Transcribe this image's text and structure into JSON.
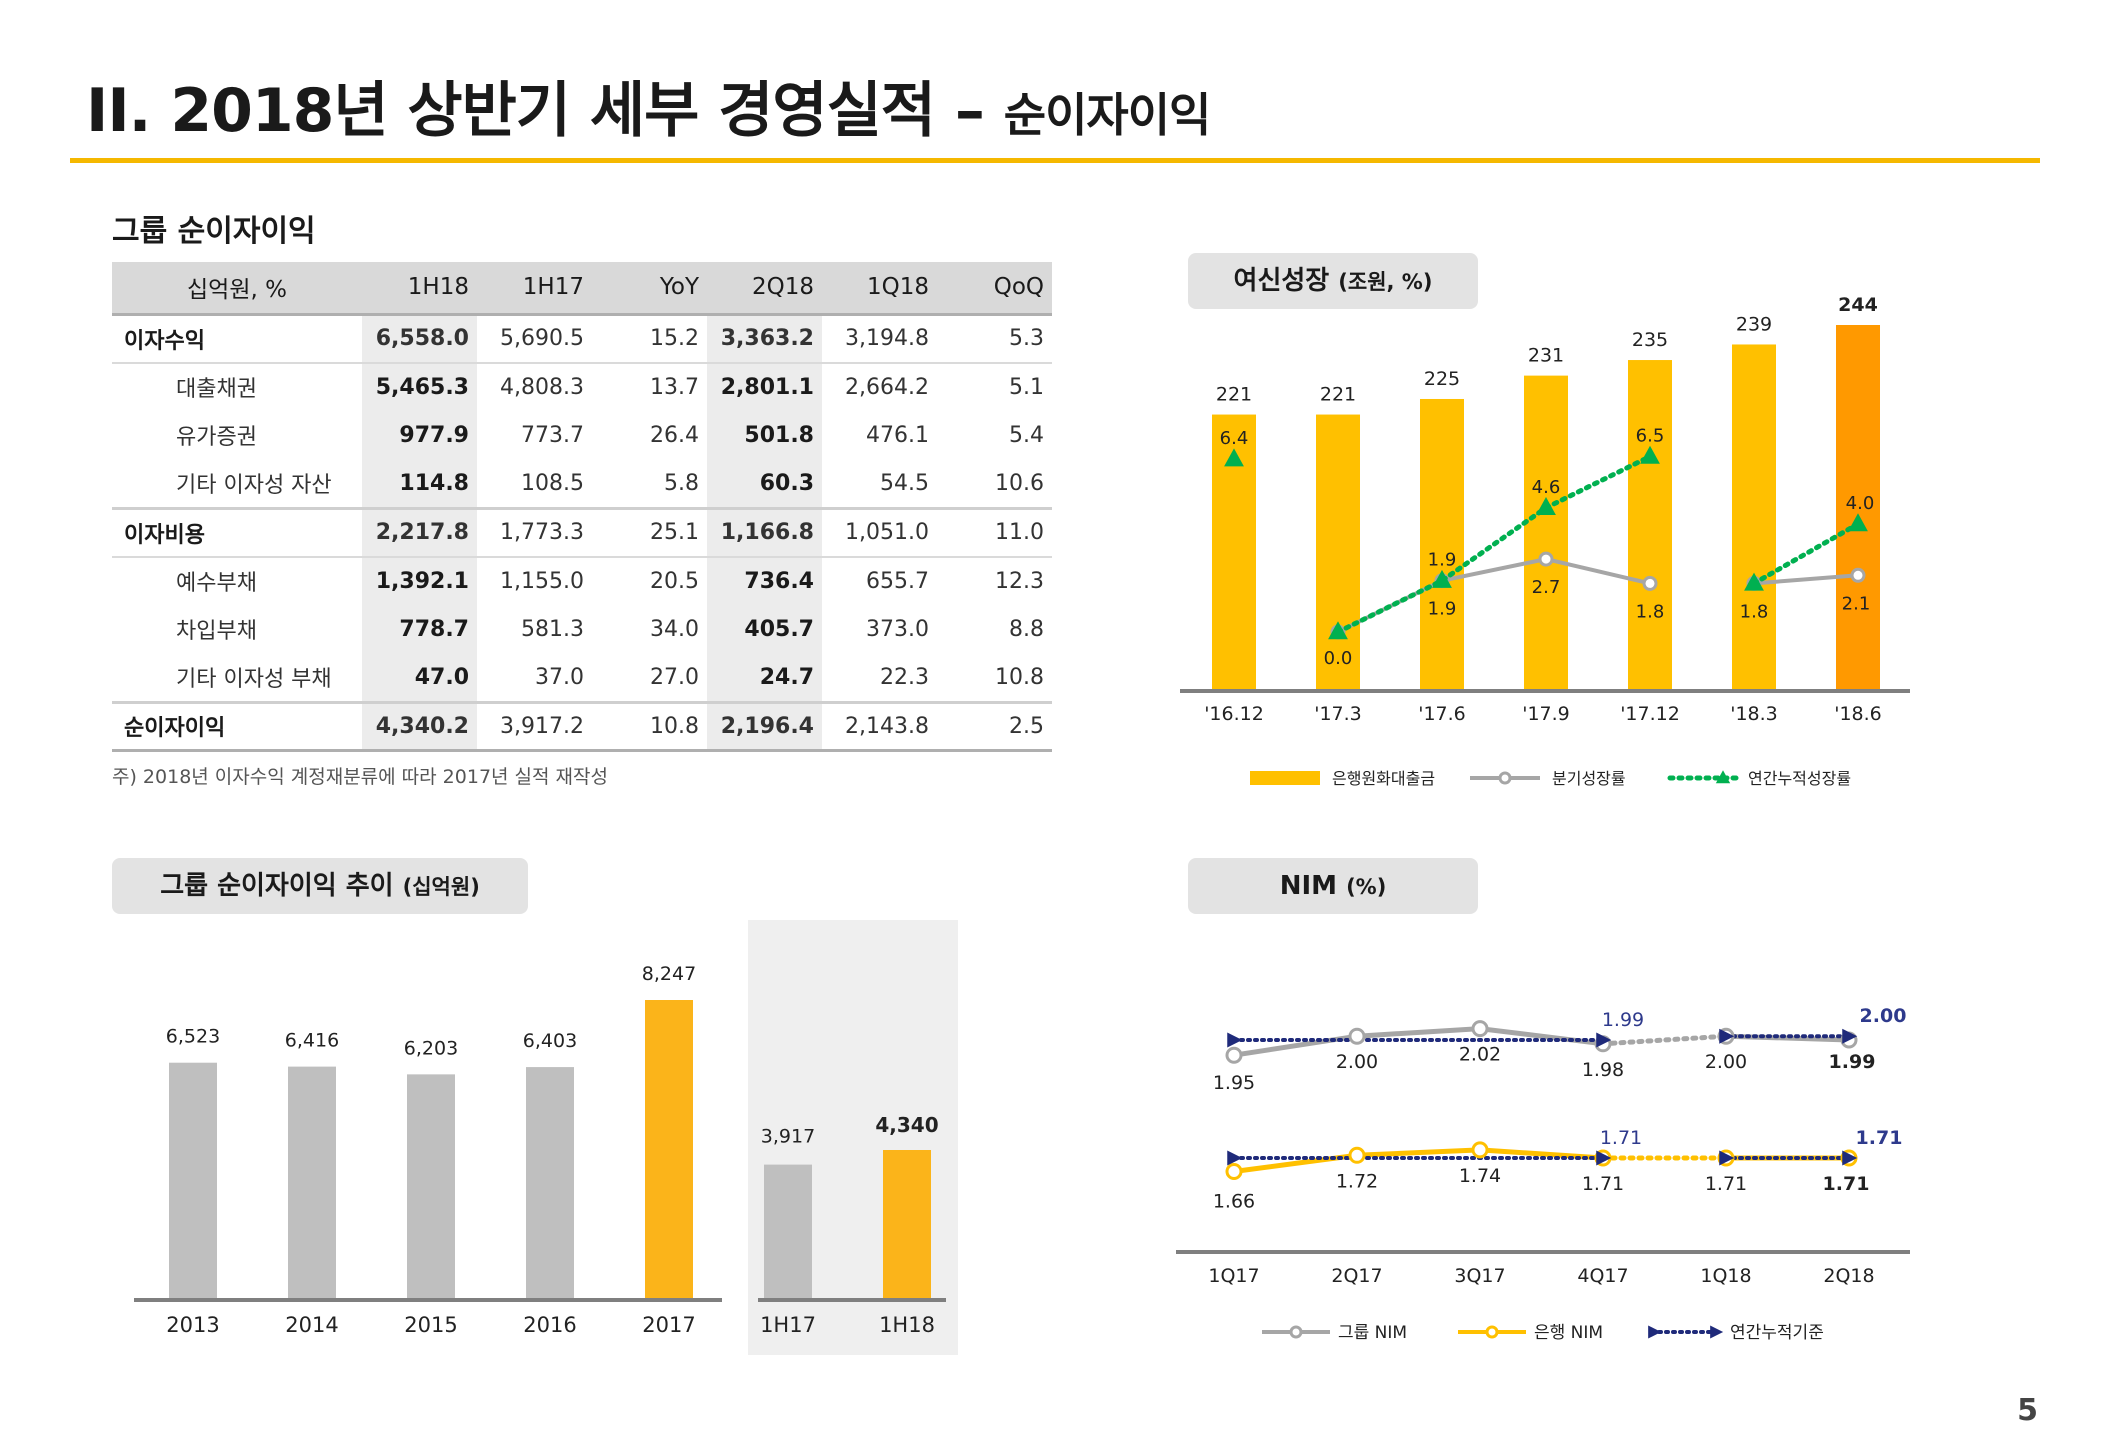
{
  "header": {
    "title_main": "II. 2018년 상반기 세부 경영실적 – ",
    "title_sub": "순이자이익",
    "page_number": "5"
  },
  "table_section": {
    "heading": "그룹 순이자이익",
    "columns": [
      "십억원, %",
      "1H18",
      "1H17",
      "YoY",
      "2Q18",
      "1Q18",
      "QoQ"
    ],
    "rows": [
      {
        "label": "이자수익",
        "values": [
          "6,558.0",
          "5,690.5",
          "15.2",
          "3,363.2",
          "3,194.8",
          "5.3"
        ]
      },
      {
        "label": "대출채권",
        "values": [
          "5,465.3",
          "4,808.3",
          "13.7",
          "2,801.1",
          "2,664.2",
          "5.1"
        ]
      },
      {
        "label": "유가증권",
        "values": [
          "977.9",
          "773.7",
          "26.4",
          "501.8",
          "476.1",
          "5.4"
        ]
      },
      {
        "label": "기타 이자성 자산",
        "values": [
          "114.8",
          "108.5",
          "5.8",
          "60.3",
          "54.5",
          "10.6"
        ]
      },
      {
        "label": "이자비용",
        "values": [
          "2,217.8",
          "1,773.3",
          "25.1",
          "1,166.8",
          "1,051.0",
          "11.0"
        ]
      },
      {
        "label": "예수부채",
        "values": [
          "1,392.1",
          "1,155.0",
          "20.5",
          "736.4",
          "655.7",
          "12.3"
        ]
      },
      {
        "label": "차입부채",
        "values": [
          "778.7",
          "581.3",
          "34.0",
          "405.7",
          "373.0",
          "8.8"
        ]
      },
      {
        "label": "기타 이자성 부채",
        "values": [
          "47.0",
          "37.0",
          "27.0",
          "24.7",
          "22.3",
          "10.8"
        ]
      },
      {
        "label": "순이자이익",
        "values": [
          "4,340.2",
          "3,917.2",
          "10.8",
          "2,196.4",
          "2,143.8",
          "2.5"
        ]
      }
    ],
    "footnote": "주) 2018년 이자수익 계정재분류에 따라 2017년 실적 재작성"
  },
  "pills": {
    "loan_main": "여신성장",
    "loan_unit": "(조원, %)",
    "nii_main": "그룹 순이자이익 추이",
    "nii_unit": "(십억원)",
    "nim_main": "NIM",
    "nim_unit": "(%)"
  },
  "colors": {
    "accent": "#F5B800",
    "bar_yellow": "#FFC000",
    "bar_orange": "#FF9900",
    "bar_gray": "#BFBFBF",
    "bar_gold": "#FBB41A",
    "line_gray": "#A6A6A6",
    "line_green": "#00B050",
    "line_navy": "#1F2A7A",
    "label_navy": "#2E3A8C"
  },
  "chart_data": [
    {
      "type": "bar+line",
      "name": "loan_growth",
      "categories": [
        "'16.12",
        "'17.3",
        "'17.6",
        "'17.9",
        "'17.12",
        "'18.3",
        "'18.6"
      ],
      "series": [
        {
          "name": "은행원화대출금",
          "type": "bar",
          "values": [
            221,
            221,
            225,
            231,
            235,
            239,
            244
          ],
          "labels": [
            "221",
            "221",
            "225",
            "231",
            "235",
            "239",
            "244"
          ]
        },
        {
          "name": "분기성장률",
          "type": "line",
          "values": [
            null,
            0.0,
            1.9,
            2.7,
            1.8,
            1.8,
            2.1
          ],
          "labels": [
            "",
            "0.0",
            "1.9",
            "2.7",
            "1.8",
            "1.8",
            "2.1"
          ]
        },
        {
          "name": "연간누적성장률",
          "type": "line",
          "values": [
            6.4,
            0.0,
            1.9,
            4.6,
            6.5,
            1.8,
            4.0
          ],
          "labels": [
            "6.4",
            "",
            "1.9",
            "4.6",
            "6.5",
            "",
            "4.0"
          ]
        }
      ],
      "legend": [
        "은행원화대출금",
        "분기성장률",
        "연간누적성장률"
      ],
      "legend_position": "bottom"
    },
    {
      "type": "bar",
      "name": "nii_trend",
      "categories": [
        "2013",
        "2014",
        "2015",
        "2016",
        "2017"
      ],
      "values": [
        6523,
        6416,
        6203,
        6403,
        8247
      ],
      "labels": [
        "6,523",
        "6,416",
        "6,203",
        "6,403",
        "8,247"
      ]
    },
    {
      "type": "bar",
      "name": "nii_half",
      "categories": [
        "1H17",
        "1H18"
      ],
      "values": [
        3917,
        4340
      ],
      "labels": [
        "3,917",
        "4,340"
      ]
    },
    {
      "type": "line",
      "name": "nim",
      "categories": [
        "1Q17",
        "2Q17",
        "3Q17",
        "4Q17",
        "1Q18",
        "2Q18"
      ],
      "series": [
        {
          "name": "그룹 NIM",
          "values": [
            1.95,
            2.0,
            2.02,
            1.98,
            2.0,
            1.99
          ],
          "labels": [
            "1.95",
            "2.00",
            "2.02",
            "1.98",
            "2.00",
            "1.99"
          ]
        },
        {
          "name": "은행 NIM",
          "values": [
            1.66,
            1.72,
            1.74,
            1.71,
            1.71,
            1.71
          ],
          "labels": [
            "1.66",
            "1.72",
            "1.74",
            "1.71",
            "1.71",
            "1.71"
          ]
        },
        {
          "name": "연간누적기준 (그룹)",
          "values": [
            1.99,
            1.99,
            1.99,
            1.99,
            2.0,
            2.0
          ],
          "labels": [
            "",
            "",
            "",
            "1.99",
            "",
            "2.00"
          ]
        },
        {
          "name": "연간누적기준 (은행)",
          "values": [
            1.71,
            1.71,
            1.71,
            1.71,
            1.71,
            1.71
          ],
          "labels": [
            "",
            "",
            "",
            "1.71",
            "",
            "1.71"
          ]
        }
      ],
      "legend": [
        "그룹 NIM",
        "은행 NIM",
        "연간누적기준"
      ],
      "legend_position": "bottom"
    }
  ]
}
